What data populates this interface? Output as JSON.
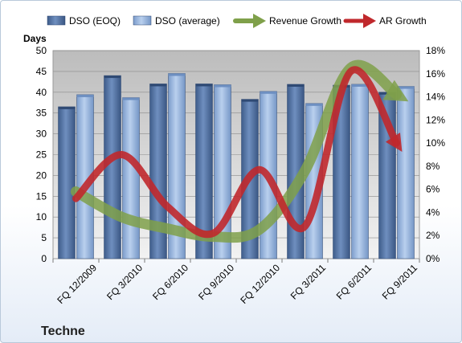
{
  "chart_data": {
    "type": "bar",
    "company": "Techne",
    "ylabel": "Days",
    "ylim": [
      0,
      50
    ],
    "y_ticks": [
      0,
      5,
      10,
      15,
      20,
      25,
      30,
      35,
      40,
      45,
      50
    ],
    "y2lim": [
      0,
      18
    ],
    "y2_ticks": [
      "0%",
      "2%",
      "4%",
      "6%",
      "8%",
      "10%",
      "12%",
      "14%",
      "16%",
      "18%"
    ],
    "categories": [
      "FQ 12/2009",
      "FQ 3/2010",
      "FQ 6/2010",
      "FQ 9/2010",
      "FQ 12/2010",
      "FQ 3/2011",
      "FQ 6/2011",
      "FQ 9/2011"
    ],
    "legend_position": "top",
    "series": [
      {
        "name": "DSO (EOQ)",
        "type": "bar",
        "axis": "left",
        "color": "#4f6f9e",
        "values": [
          36.5,
          44.0,
          42.0,
          42.0,
          38.3,
          41.9,
          41.7,
          40.0
        ]
      },
      {
        "name": "DSO (average)",
        "type": "bar",
        "axis": "left",
        "color": "#8fb0d8",
        "values": [
          39.4,
          38.7,
          44.5,
          41.8,
          40.2,
          37.3,
          41.9,
          41.4
        ]
      },
      {
        "name": "Revenue Growth",
        "type": "line",
        "axis": "right",
        "unit": "%",
        "color": "#7fa04a",
        "values": [
          5.8,
          3.6,
          2.6,
          1.9,
          2.5,
          7.6,
          16.5,
          14.2
        ]
      },
      {
        "name": "AR Growth",
        "type": "line",
        "axis": "right",
        "unit": "%",
        "color": "#c0282c",
        "values": [
          5.2,
          9.0,
          4.5,
          2.2,
          7.7,
          2.8,
          16.2,
          10.0
        ]
      }
    ]
  }
}
